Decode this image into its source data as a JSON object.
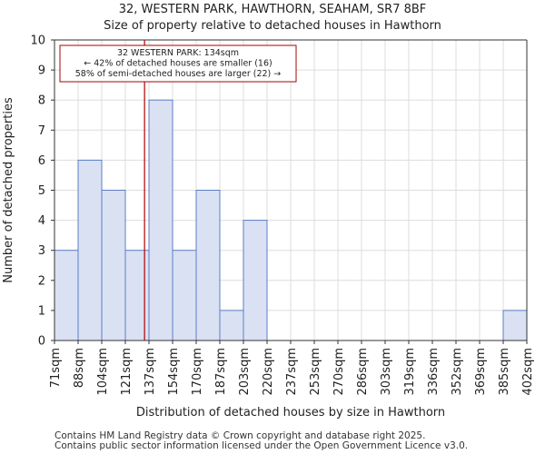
{
  "chart_data": {
    "type": "bar",
    "title": "32, WESTERN PARK, HAWTHORN, SEAHAM, SR7 8BF",
    "subtitle": "Size of property relative to detached houses in Hawthorn",
    "xlabel": "Distribution of detached houses by size in Hawthorn",
    "ylabel": "Number of detached properties",
    "ylim": [
      0,
      10
    ],
    "yticks": [
      0,
      1,
      2,
      3,
      4,
      5,
      6,
      7,
      8,
      9,
      10
    ],
    "grid": true,
    "bin_edges": [
      "71sqm",
      "88sqm",
      "104sqm",
      "121sqm",
      "137sqm",
      "154sqm",
      "170sqm",
      "187sqm",
      "203sqm",
      "220sqm",
      "237sqm",
      "253sqm",
      "270sqm",
      "286sqm",
      "303sqm",
      "319sqm",
      "336sqm",
      "352sqm",
      "369sqm",
      "385sqm",
      "402sqm"
    ],
    "values": [
      3,
      6,
      5,
      3,
      8,
      3,
      5,
      1,
      4,
      0,
      0,
      0,
      0,
      0,
      0,
      0,
      0,
      0,
      0,
      1
    ],
    "bar_color": "#dae1f3",
    "bar_edge_color": "#5b7fc4",
    "marker": {
      "value_sqm": 134,
      "color": "#aa0000",
      "label_lines": [
        "32 WESTERN PARK: 134sqm",
        "← 42% of detached houses are smaller (16)",
        "58% of semi-detached houses are larger (22) →"
      ]
    }
  },
  "footer": {
    "line1": "Contains HM Land Registry data © Crown copyright and database right 2025.",
    "line2": "Contains public sector information licensed under the Open Government Licence v3.0."
  }
}
